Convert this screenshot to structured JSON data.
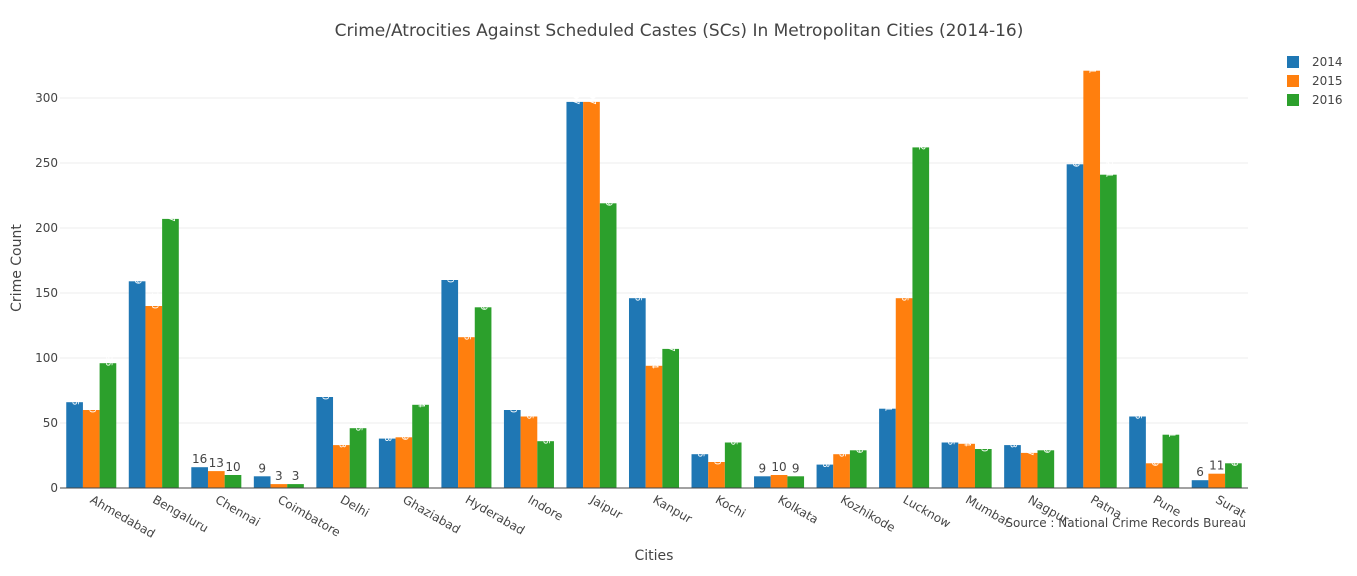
{
  "chart_data": {
    "type": "bar",
    "title": "Crime/Atrocities Against Scheduled Castes (SCs) In Metropolitan Cities (2014-16)",
    "xlabel": "Cities",
    "ylabel": "Crime Count",
    "ylim": [
      0,
      330
    ],
    "yticks": [
      0,
      50,
      100,
      150,
      200,
      250,
      300
    ],
    "grid": true,
    "legend_position": "top-right",
    "annotation": "Source : National Crime Records Bureau",
    "categories": [
      "Ahmedabad",
      "Bengaluru",
      "Chennai",
      "Coimbatore",
      "Delhi",
      "Ghaziabad",
      "Hyderabad",
      "Indore",
      "Jaipur",
      "Kanpur",
      "Kochi",
      "Kolkata",
      "Kozhikode",
      "Lucknow",
      "Mumbai",
      "Nagpur",
      "Patna",
      "Pune",
      "Surat"
    ],
    "series": [
      {
        "name": "2014",
        "color": "#1f77b4",
        "values": [
          66,
          159,
          16,
          9,
          70,
          38,
          160,
          60,
          297,
          146,
          26,
          9,
          18,
          61,
          35,
          33,
          249,
          55,
          6
        ]
      },
      {
        "name": "2015",
        "color": "#ff7f0e",
        "values": [
          60,
          140,
          13,
          3,
          33,
          39,
          116,
          55,
          297,
          94,
          20,
          10,
          26,
          146,
          34,
          27,
          321,
          19,
          11
        ]
      },
      {
        "name": "2016",
        "color": "#2ca02c",
        "values": [
          96,
          207,
          10,
          3,
          46,
          64,
          139,
          36,
          219,
          107,
          35,
          9,
          29,
          262,
          30,
          29,
          241,
          41,
          19
        ]
      }
    ]
  }
}
